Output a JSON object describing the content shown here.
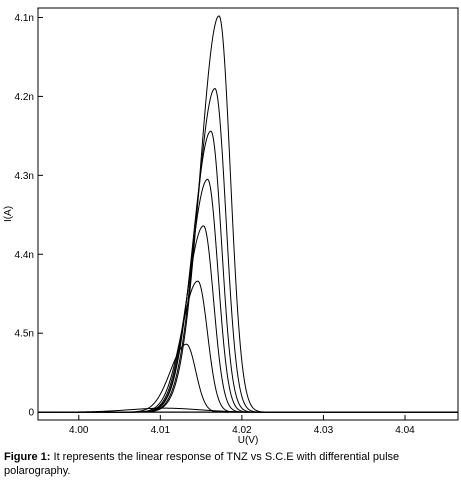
{
  "chart_data": {
    "type": "line",
    "xlabel": "U(V)",
    "ylabel": "I(A)",
    "xlim": [
      3.995,
      4.0465
    ],
    "ylim": [
      -0.1,
      5.12
    ],
    "x_ticks": [
      {
        "value": 4.0,
        "label": "4.00"
      },
      {
        "value": 4.01,
        "label": "4.01"
      },
      {
        "value": 4.02,
        "label": "4.02"
      },
      {
        "value": 4.03,
        "label": "4.03"
      },
      {
        "value": 4.04,
        "label": "4.04"
      }
    ],
    "y_ticks": [
      {
        "value": 0,
        "label": "0"
      },
      {
        "value": 1,
        "label": "4.5n"
      },
      {
        "value": 2,
        "label": "4.4n"
      },
      {
        "value": 3,
        "label": "4.3n"
      },
      {
        "value": 4,
        "label": "4.2n"
      },
      {
        "value": 5,
        "label": "4.1n"
      }
    ],
    "grid": false,
    "line_color": "#000000",
    "series": [
      {
        "peak_x": 4.0105,
        "peak_y": 0.05
      },
      {
        "peak_x": 4.0132,
        "peak_y": 0.86
      },
      {
        "peak_x": 4.0146,
        "peak_y": 1.66
      },
      {
        "peak_x": 4.0153,
        "peak_y": 2.36
      },
      {
        "peak_x": 4.0158,
        "peak_y": 2.95
      },
      {
        "peak_x": 4.0162,
        "peak_y": 3.56
      },
      {
        "peak_x": 4.0167,
        "peak_y": 4.1
      },
      {
        "peak_x": 4.0172,
        "peak_y": 5.02
      }
    ]
  },
  "caption": {
    "label": "Figure 1:",
    "text": "It represents the linear response of TNZ  vs S.C.E with differential pulse polarography."
  }
}
